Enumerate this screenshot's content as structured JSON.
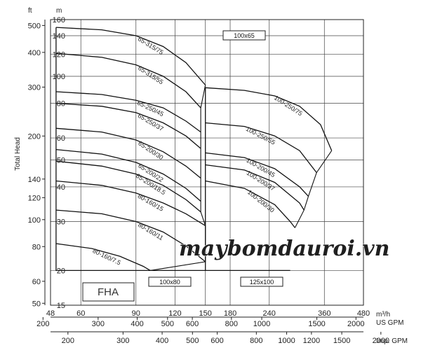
{
  "chart_data": {
    "type": "line",
    "title": "",
    "ylabel": "Total Head",
    "y_unit_left": "ft",
    "y_unit_right": "m",
    "x_unit_top": "m³/h",
    "x_unit_us": "US GPM",
    "x_unit_imp": "Imp. GPM",
    "scale": "log-log",
    "xlim_m3h": [
      48,
      480
    ],
    "ylim_m": [
      15,
      160
    ],
    "x_ticks_m3h": [
      "48",
      "60",
      "90",
      "120",
      "150",
      "180",
      "240",
      "360",
      "480"
    ],
    "x_ticks_us": [
      "200",
      "300",
      "400",
      "500",
      "600",
      "800",
      "1000",
      "1500",
      "2000"
    ],
    "x_ticks_imp": [
      "200",
      "300",
      "400",
      "500",
      "600",
      "800",
      "1000",
      "1200",
      "1500",
      "2000"
    ],
    "y_ticks_m": [
      "15",
      "20",
      "30",
      "40",
      "50",
      "60",
      "80",
      "100",
      "120",
      "140",
      "160"
    ],
    "y_ticks_ft": [
      "50",
      "60",
      "80",
      "100",
      "120",
      "140",
      "200",
      "300",
      "400",
      "500"
    ],
    "series": [
      {
        "name": "65-315/75",
        "x": [
          50,
          70,
          90,
          110,
          130,
          150
        ],
        "y": [
          150,
          147,
          140,
          128,
          112,
          93
        ]
      },
      {
        "name": "65-315/55",
        "x": [
          50,
          70,
          90,
          110,
          130,
          145
        ],
        "y": [
          121,
          117,
          110,
          100,
          88,
          77
        ]
      },
      {
        "name": "65-250/45",
        "x": [
          50,
          70,
          90,
          110,
          130,
          145
        ],
        "y": [
          88,
          86,
          82,
          77,
          69,
          63
        ]
      },
      {
        "name": "65-250/37",
        "x": [
          50,
          70,
          90,
          110,
          130,
          145
        ],
        "y": [
          80,
          78,
          74,
          68,
          61,
          55
        ]
      },
      {
        "name": "65-200/30",
        "x": [
          50,
          70,
          90,
          110,
          130,
          145
        ],
        "y": [
          65,
          63,
          59,
          53.5,
          47.5,
          43
        ]
      },
      {
        "name": "65-200/22",
        "x": [
          50,
          70,
          90,
          110,
          130,
          145
        ],
        "y": [
          54.5,
          52.5,
          49,
          44.5,
          39.5,
          35.5
        ]
      },
      {
        "name": "65-200/18.5",
        "x": [
          50,
          70,
          90,
          110,
          130,
          145
        ],
        "y": [
          49.5,
          47.5,
          44.5,
          40.5,
          36,
          32.5
        ]
      },
      {
        "name": "80-160/15",
        "x": [
          50,
          70,
          90,
          110,
          130,
          150
        ],
        "y": [
          42,
          40.5,
          38,
          35,
          32,
          29
        ]
      },
      {
        "name": "80-160/11",
        "x": [
          50,
          70,
          90,
          110,
          130,
          150
        ],
        "y": [
          33,
          32,
          30,
          27.5,
          24.5,
          21.5
        ]
      },
      {
        "name": "80-160/7.5",
        "x": [
          50,
          65,
          80,
          95,
          100
        ],
        "y": [
          25,
          24,
          22.5,
          20.7,
          20
        ]
      },
      {
        "name": "100-250/75",
        "x": [
          150,
          200,
          250,
          300,
          350,
          380
        ],
        "y": [
          91,
          89,
          85,
          78,
          67,
          54
        ]
      },
      {
        "name": "100-250/55",
        "x": [
          150,
          200,
          250,
          300,
          340
        ],
        "y": [
          68,
          66,
          61,
          54,
          45
        ]
      },
      {
        "name": "100-200/45",
        "x": [
          150,
          200,
          250,
          300,
          320
        ],
        "y": [
          53,
          51,
          46.5,
          40,
          37
        ]
      },
      {
        "name": "100-200/37",
        "x": [
          150,
          200,
          250,
          300,
          310
        ],
        "y": [
          48,
          46,
          41.5,
          35,
          33
        ]
      },
      {
        "name": "100-200/30",
        "x": [
          150,
          200,
          250,
          280,
          290
        ],
        "y": [
          42,
          39.5,
          34.5,
          30,
          28.5
        ]
      }
    ],
    "boxes": [
      "100x65",
      "100x80",
      "125x100"
    ],
    "series_label": "FHA",
    "watermark": "maybomdauroi.vn",
    "grid": true,
    "legend": "none"
  }
}
